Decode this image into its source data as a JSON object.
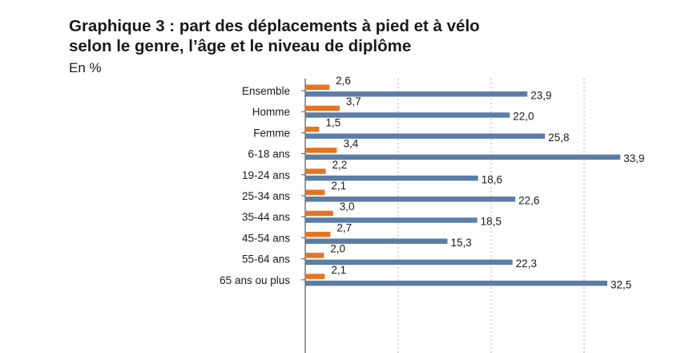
{
  "header": {
    "title_line1": "Graphique 3 : part des déplacements à pied et à vélo",
    "title_line2": "selon le genre, l’âge et le niveau de diplôme",
    "unit": "En %"
  },
  "chart_data": {
    "type": "bar",
    "orientation": "horizontal",
    "title": "Graphique 3 : part des déplacements à pied et à vélo selon le genre, l’âge et le niveau de diplôme",
    "unit": "En %",
    "categories": [
      "Ensemble",
      "Homme",
      "Femme",
      "6-18 ans",
      "19-24 ans",
      "25-34 ans",
      "35-44 ans",
      "45-54 ans",
      "55-64 ans",
      "65 ans ou plus"
    ],
    "groups": [
      [
        "Ensemble"
      ],
      [
        "Homme",
        "Femme"
      ],
      [
        "6-18 ans",
        "19-24 ans",
        "25-34 ans",
        "35-44 ans",
        "45-54 ans",
        "55-64 ans",
        "65 ans ou plus"
      ]
    ],
    "series": [
      {
        "color": "#e8731f",
        "values": [
          2.6,
          3.7,
          1.5,
          3.4,
          2.2,
          2.1,
          3.0,
          2.7,
          2.0,
          2.1
        ]
      },
      {
        "color": "#5b7ea6",
        "values": [
          23.9,
          22.0,
          25.8,
          33.9,
          18.6,
          22.6,
          18.5,
          15.3,
          22.3,
          32.5
        ]
      }
    ],
    "labels": [
      [
        "2,6",
        "3,7",
        "1,5",
        "3,4",
        "2,2",
        "2,1",
        "3,0",
        "2,7",
        "2,0",
        "2,1"
      ],
      [
        "23,9",
        "22,0",
        "25,8",
        "33,9",
        "18,6",
        "22,6",
        "18,5",
        "15,3",
        "22,3",
        "32,5"
      ]
    ],
    "xlim": [
      0,
      40
    ],
    "grid": true,
    "grid_style": "dotted vertical"
  }
}
